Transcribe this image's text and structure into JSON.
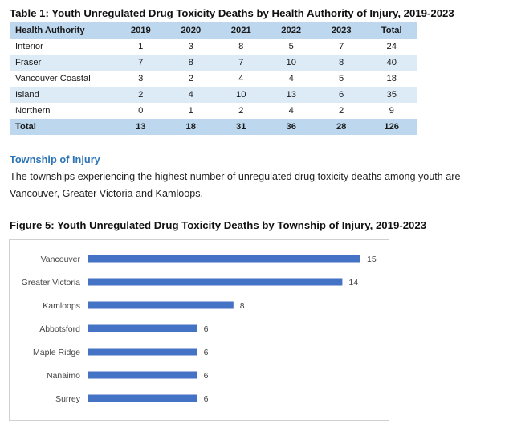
{
  "table": {
    "title": "Table 1: Youth Unregulated Drug Toxicity Deaths by Health Authority of Injury, 2019-2023",
    "columns": [
      "Health Authority",
      "2019",
      "2020",
      "2021",
      "2022",
      "2023",
      "Total"
    ],
    "rows": [
      [
        "Interior",
        "1",
        "3",
        "8",
        "5",
        "7",
        "24"
      ],
      [
        "Fraser",
        "7",
        "8",
        "7",
        "10",
        "8",
        "40"
      ],
      [
        "Vancouver Coastal",
        "3",
        "2",
        "4",
        "4",
        "5",
        "18"
      ],
      [
        "Island",
        "2",
        "4",
        "10",
        "13",
        "6",
        "35"
      ],
      [
        "Northern",
        "0",
        "1",
        "2",
        "4",
        "2",
        "9"
      ]
    ],
    "total_row": [
      "Total",
      "13",
      "18",
      "31",
      "36",
      "28",
      "126"
    ],
    "colors": {
      "header_bg": "#bdd7ee",
      "stripe_bg": "#ddebf7"
    }
  },
  "section": {
    "heading": "Township of Injury",
    "text": "The townships experiencing the highest number of unregulated drug toxicity deaths among youth are Vancouver, Greater Victoria and Kamloops.",
    "heading_color": "#2e74b5"
  },
  "figure": {
    "title": "Figure 5: Youth Unregulated Drug Toxicity Deaths by Township of Injury, 2019-2023"
  },
  "chart_data": {
    "type": "bar",
    "orientation": "horizontal",
    "categories": [
      "Vancouver",
      "Greater Victoria",
      "Kamloops",
      "Abbotsford",
      "Maple Ridge",
      "Nanaimo",
      "Surrey"
    ],
    "values": [
      15,
      14,
      8,
      6,
      6,
      6,
      6
    ],
    "xlim": [
      0,
      15
    ],
    "grid": false,
    "legend": false,
    "bar_color": "#4472c4"
  }
}
